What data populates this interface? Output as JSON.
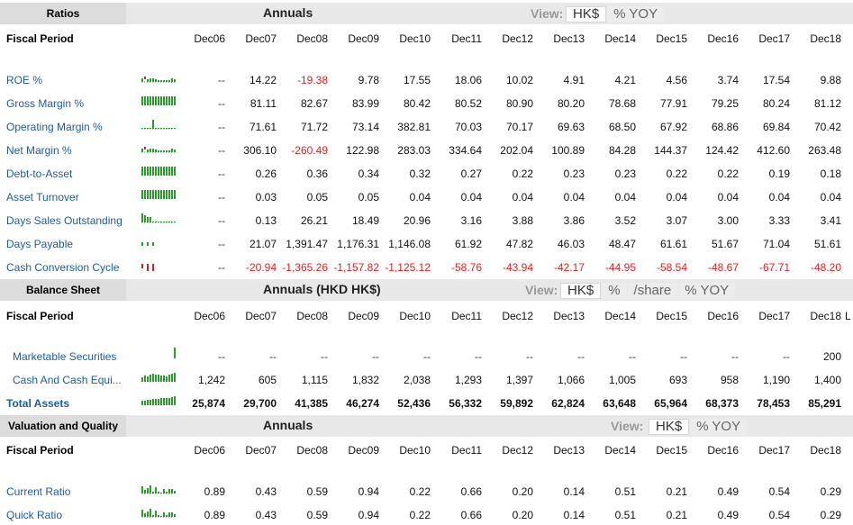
{
  "years": [
    "Dec06",
    "Dec07",
    "Dec08",
    "Dec09",
    "Dec10",
    "Dec11",
    "Dec12",
    "Dec13",
    "Dec14",
    "Dec15",
    "Dec16",
    "Dec17",
    "Dec18"
  ],
  "sections": [
    {
      "id": "ratios",
      "label": "Ratios",
      "annuals": "Annuals",
      "view_label": "View:",
      "view_options": [
        {
          "label": "HK$",
          "active": true
        },
        {
          "label": "% YOY",
          "active": false
        }
      ],
      "fiscal_label": "Fiscal Period",
      "rows": [
        {
          "label": "ROE %",
          "values": [
            "--",
            "14.22",
            "-19.38",
            "9.78",
            "17.55",
            "18.06",
            "10.02",
            "4.91",
            "4.21",
            "4.56",
            "3.74",
            "17.54",
            "9.88"
          ]
        },
        {
          "label": "Gross Margin %",
          "values": [
            "--",
            "81.11",
            "82.67",
            "83.99",
            "80.42",
            "80.52",
            "80.90",
            "80.20",
            "78.68",
            "77.91",
            "79.25",
            "80.24",
            "81.12"
          ]
        },
        {
          "label": "Operating Margin %",
          "values": [
            "--",
            "71.61",
            "71.72",
            "73.14",
            "382.81",
            "70.03",
            "70.17",
            "69.63",
            "68.50",
            "67.92",
            "68.86",
            "69.84",
            "70.42"
          ]
        },
        {
          "label": "Net Margin %",
          "values": [
            "--",
            "306.10",
            "-260.49",
            "122.98",
            "283.03",
            "334.64",
            "202.04",
            "100.89",
            "84.28",
            "144.37",
            "124.42",
            "412.60",
            "263.48"
          ]
        },
        {
          "label": "Debt-to-Asset",
          "values": [
            "--",
            "0.26",
            "0.36",
            "0.34",
            "0.32",
            "0.27",
            "0.22",
            "0.23",
            "0.23",
            "0.22",
            "0.22",
            "0.19",
            "0.18"
          ]
        },
        {
          "label": "Asset Turnover",
          "values": [
            "--",
            "0.03",
            "0.05",
            "0.05",
            "0.04",
            "0.04",
            "0.04",
            "0.04",
            "0.04",
            "0.04",
            "0.04",
            "0.04",
            "0.04"
          ]
        },
        {
          "label": "Days Sales Outstanding",
          "values": [
            "--",
            "0.13",
            "26.21",
            "18.49",
            "20.96",
            "3.16",
            "3.88",
            "3.86",
            "3.52",
            "3.07",
            "3.00",
            "3.33",
            "3.41"
          ]
        },
        {
          "label": "Days Payable",
          "values": [
            "--",
            "21.07",
            "1,391.47",
            "1,176.31",
            "1,146.08",
            "61.92",
            "47.82",
            "46.03",
            "48.47",
            "61.61",
            "51.67",
            "71.04",
            "51.61"
          ]
        },
        {
          "label": "Cash Conversion Cycle",
          "values": [
            "--",
            "-20.94",
            "-1,365.26",
            "-1,157.82",
            "-1,125.12",
            "-58.76",
            "-43.94",
            "-42.17",
            "-44.95",
            "-58.54",
            "-48.67",
            "-67.71",
            "-48.20"
          ]
        }
      ]
    },
    {
      "id": "balance",
      "label": "Balance Sheet",
      "annuals": "Annuals (HKD HK$)",
      "view_label": "View:",
      "view_options": [
        {
          "label": "HK$",
          "active": true
        },
        {
          "label": "%",
          "active": false
        },
        {
          "label": "/share",
          "active": false
        },
        {
          "label": "% YOY",
          "active": false
        }
      ],
      "fiscal_label": "Fiscal Period",
      "extra_header": "L",
      "rows": [
        {
          "label": "Marketable Securities",
          "values": [
            "--",
            "--",
            "--",
            "--",
            "--",
            "--",
            "--",
            "--",
            "--",
            "--",
            "--",
            "--",
            "200"
          ]
        },
        {
          "label": "Cash And Cash Equi...",
          "values": [
            "1,242",
            "605",
            "1,115",
            "1,832",
            "2,038",
            "1,293",
            "1,397",
            "1,066",
            "1,005",
            "693",
            "958",
            "1,190",
            "1,400"
          ]
        },
        {
          "label": "Total Assets",
          "values": [
            "25,874",
            "29,700",
            "41,385",
            "46,274",
            "52,436",
            "56,332",
            "59,892",
            "62,824",
            "63,648",
            "65,964",
            "68,373",
            "78,453",
            "85,291"
          ]
        }
      ]
    },
    {
      "id": "valuation",
      "label": "Valuation and Quality",
      "annuals": "Annuals",
      "view_label": "View:",
      "view_options": [
        {
          "label": "HK$",
          "active": true
        },
        {
          "label": "% YOY",
          "active": false
        }
      ],
      "fiscal_label": "Fiscal Period",
      "rows": [
        {
          "label": "Current Ratio",
          "values": [
            "0.89",
            "0.43",
            "0.59",
            "0.94",
            "0.22",
            "0.66",
            "0.20",
            "0.14",
            "0.51",
            "0.21",
            "0.49",
            "0.54",
            "0.29"
          ]
        },
        {
          "label": "Quick Ratio",
          "values": [
            "0.89",
            "0.43",
            "0.59",
            "0.94",
            "0.22",
            "0.66",
            "0.20",
            "0.14",
            "0.51",
            "0.21",
            "0.49",
            "0.54",
            "0.29"
          ]
        }
      ]
    }
  ],
  "colors": {
    "header_bg": "#e8e8e8",
    "label_bg": "#dcdcdc",
    "link": "#1d5c9a",
    "negative": "#e0201e",
    "spark_green": "#2e9a2e",
    "spark_red": "#d9201e"
  }
}
